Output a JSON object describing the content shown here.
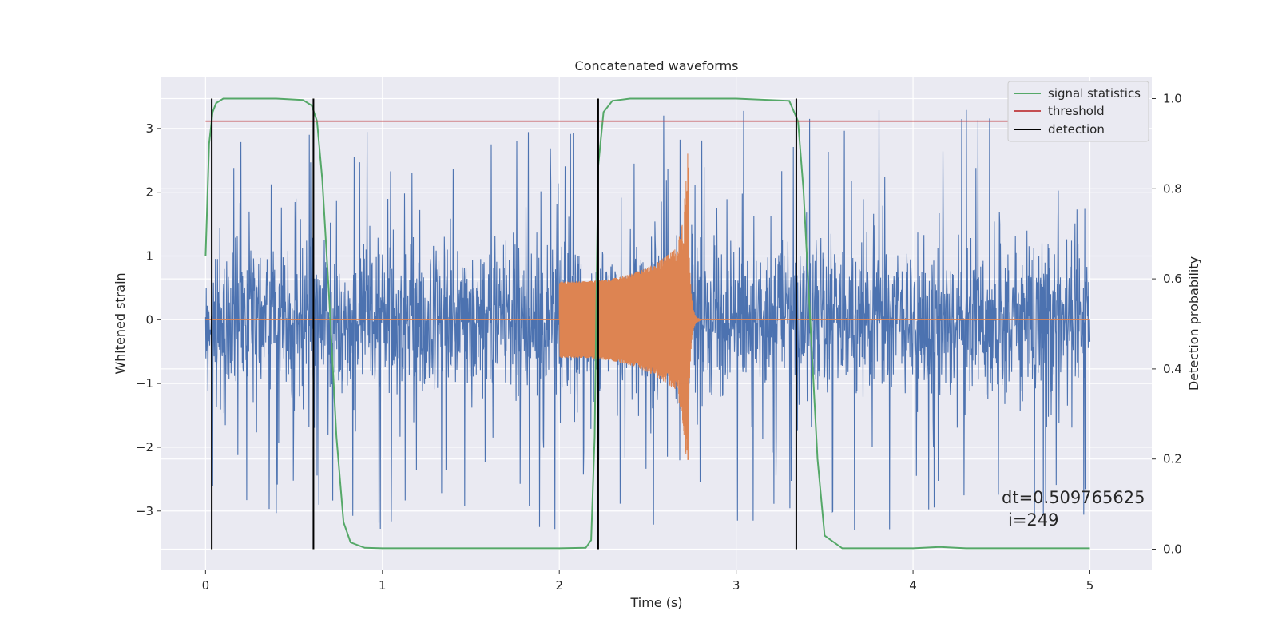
{
  "chart_data": {
    "type": "line",
    "title": "Concatenated waveforms",
    "xlabel": "Time (s)",
    "ylabel_left": "Whitened strain",
    "ylabel_right": "Detection probability",
    "xlim": [
      -0.25,
      5.35
    ],
    "ylim_left": [
      -3.93,
      3.8
    ],
    "ylim_right": [
      -0.047,
      1.047
    ],
    "x_ticks": [
      "0",
      "1",
      "2",
      "3",
      "4",
      "5"
    ],
    "y_ticks_left": [
      "−3",
      "−2",
      "−1",
      "0",
      "1",
      "2",
      "3"
    ],
    "y_ticks_right": [
      "0.0",
      "0.2",
      "0.4",
      "0.6",
      "0.8",
      "1.0"
    ],
    "grid": true,
    "legend_position": "top-right",
    "background": "#eaeaf2",
    "series": [
      {
        "name": "signal statistics",
        "axis": "right",
        "color": "#55a868",
        "x": [
          0.0,
          0.02,
          0.04,
          0.06,
          0.1,
          0.2,
          0.4,
          0.55,
          0.6,
          0.63,
          0.66,
          0.7,
          0.74,
          0.78,
          0.82,
          0.9,
          1.0,
          1.5,
          2.0,
          2.15,
          2.18,
          2.2,
          2.22,
          2.25,
          2.3,
          2.4,
          3.0,
          3.3,
          3.35,
          3.38,
          3.42,
          3.46,
          3.5,
          3.6,
          4.0,
          4.15,
          4.3,
          5.0
        ],
        "values": [
          0.65,
          0.9,
          0.97,
          0.99,
          1.0,
          1.0,
          1.0,
          0.997,
          0.985,
          0.95,
          0.82,
          0.55,
          0.25,
          0.06,
          0.015,
          0.003,
          0.002,
          0.002,
          0.002,
          0.003,
          0.02,
          0.25,
          0.85,
          0.97,
          0.995,
          1.0,
          1.0,
          0.995,
          0.95,
          0.8,
          0.5,
          0.2,
          0.03,
          0.002,
          0.002,
          0.005,
          0.002,
          0.002
        ]
      },
      {
        "name": "threshold",
        "axis": "right",
        "color": "#c44e52",
        "x": [
          0.0,
          5.0
        ],
        "values": [
          0.95,
          0.95
        ]
      },
      {
        "name": "detection",
        "axis": "right",
        "color": "#000000",
        "vertical_lines_x": [
          0.035,
          0.61,
          2.22,
          3.34
        ],
        "range": [
          0.0,
          1.0
        ]
      },
      {
        "axis": "left",
        "color": "#4c72b0",
        "type": "noise",
        "x_range": [
          0.0,
          5.0
        ],
        "typical_amplitude": 0.9,
        "peak_range": [
          -3.65,
          3.45
        ]
      },
      {
        "axis": "left",
        "color": "#dd8452",
        "type": "chirp",
        "start_x": 2.0,
        "merger_x": 2.73,
        "start_amplitude": 0.6,
        "merger_amplitude_max": 2.85,
        "merger_amplitude_min": -2.2,
        "ringdown_end_x": 2.8
      }
    ],
    "annotations": [
      "dt=0.509765625",
      "i=249"
    ]
  }
}
